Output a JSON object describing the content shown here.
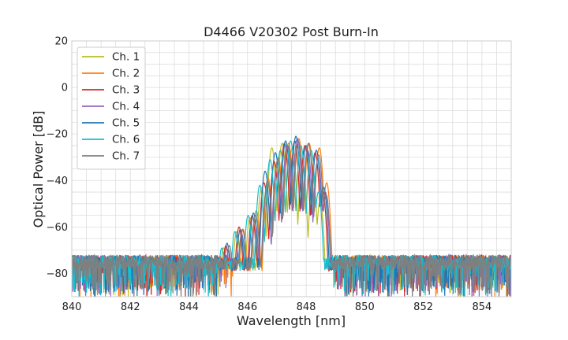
{
  "chart_data": {
    "type": "line",
    "title": "D4466 V20302 Post Burn-In",
    "xlabel": "Wavelength [nm]",
    "ylabel": "Optical Power [dB]",
    "xlim": [
      840,
      855
    ],
    "ylim": [
      -90,
      20
    ],
    "xticks": [
      840,
      842,
      844,
      846,
      848,
      850,
      852,
      854
    ],
    "yticks": [
      -80,
      -60,
      -40,
      -20,
      0,
      20
    ],
    "x_minor_step": 0.5,
    "y_minor_step": 5,
    "grid": true,
    "legend_position": "top-left",
    "noise_floor_db": -75,
    "series": [
      {
        "name": "Ch. 1",
        "color": "#bcbd22",
        "shift_nm": -0.12,
        "cutoff_low_nm": 845.1,
        "cutoff_high_nm": 848.85,
        "lobe_centers_nm": [
          845.3,
          845.75,
          846.2,
          846.6,
          846.95,
          847.3,
          847.65,
          848.0,
          848.35,
          848.6
        ],
        "lobe_peaks_db": [
          -69,
          -62,
          -56,
          -43,
          -26,
          -24,
          -26,
          -33,
          -39,
          -49
        ]
      },
      {
        "name": "Ch. 2",
        "color": "#ff7f0e",
        "shift_nm": 0.1,
        "cutoff_low_nm": 845.5,
        "cutoff_high_nm": 848.95,
        "lobe_centers_nm": [
          845.3,
          845.75,
          846.2,
          846.6,
          846.95,
          847.3,
          847.65,
          848.0,
          848.35,
          848.6
        ],
        "lobe_peaks_db": [
          -68,
          -61,
          -53,
          -39,
          -30,
          -24,
          -22,
          -24,
          -26,
          -41
        ]
      },
      {
        "name": "Ch. 3",
        "color": "#d62728",
        "shift_nm": -0.04,
        "cutoff_low_nm": 845.0,
        "cutoff_high_nm": 849.0,
        "lobe_centers_nm": [
          845.3,
          845.75,
          846.2,
          846.6,
          846.95,
          847.3,
          847.65,
          848.0,
          848.35,
          848.6
        ],
        "lobe_peaks_db": [
          -68,
          -60,
          -55,
          -41,
          -32,
          -24,
          -23,
          -25,
          -28,
          -44
        ]
      },
      {
        "name": "Ch. 4",
        "color": "#9467bd",
        "shift_nm": 0.05,
        "cutoff_low_nm": 845.3,
        "cutoff_high_nm": 849.05,
        "lobe_centers_nm": [
          845.3,
          845.75,
          846.2,
          846.6,
          846.95,
          847.3,
          847.65,
          848.0,
          848.35,
          848.6
        ],
        "lobe_peaks_db": [
          -70,
          -63,
          -57,
          -44,
          -34,
          -25,
          -22,
          -27,
          -31,
          -45
        ]
      },
      {
        "name": "Ch. 5",
        "color": "#1f77b4",
        "shift_nm": 0.0,
        "cutoff_low_nm": 845.0,
        "cutoff_high_nm": 849.1,
        "lobe_centers_nm": [
          845.3,
          845.75,
          846.2,
          846.6,
          846.95,
          847.3,
          847.65,
          848.0,
          848.35,
          848.6
        ],
        "lobe_peaks_db": [
          -67,
          -61,
          -54,
          -36,
          -28,
          -23,
          -21,
          -25,
          -27,
          -43
        ]
      },
      {
        "name": "Ch. 6",
        "color": "#17becf",
        "shift_nm": -0.18,
        "cutoff_low_nm": 845.0,
        "cutoff_high_nm": 848.9,
        "lobe_centers_nm": [
          845.3,
          845.75,
          846.2,
          846.6,
          846.95,
          847.3,
          847.65,
          848.0,
          848.35,
          848.6
        ],
        "lobe_peaks_db": [
          -69,
          -62,
          -55,
          -42,
          -31,
          -27,
          -23,
          -25,
          -27,
          -45
        ]
      },
      {
        "name": "Ch. 7",
        "color": "#7f7f7f",
        "shift_nm": 0.08,
        "cutoff_low_nm": 845.0,
        "cutoff_high_nm": 849.1,
        "lobe_centers_nm": [
          845.3,
          845.75,
          846.2,
          846.6,
          846.95,
          847.3,
          847.65,
          848.0,
          848.35,
          848.6
        ],
        "lobe_peaks_db": [
          -68,
          -61,
          -55,
          -40,
          -31,
          -25,
          -23,
          -24,
          -29,
          -46
        ]
      }
    ]
  }
}
